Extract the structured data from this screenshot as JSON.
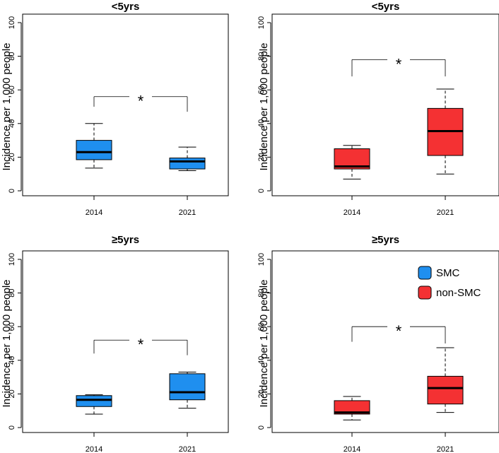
{
  "colors": {
    "SMC": "#1f8fef",
    "non-SMC": "#f43133"
  },
  "legend": {
    "items": [
      {
        "label": "SMC",
        "group": "SMC"
      },
      {
        "label": "non-SMC",
        "group": "non-SMC"
      }
    ],
    "placement": "top-right of bottom-right panel"
  },
  "chart_data": [
    {
      "type": "boxplot",
      "title": "<5yrs",
      "ylabel": "Incidence per 1,000 people",
      "ylim": [
        0,
        100
      ],
      "yticks": [
        0,
        20,
        40,
        60,
        80,
        100
      ],
      "group": "SMC",
      "categories": [
        "2014",
        "2021"
      ],
      "boxes": [
        {
          "x": "2014",
          "min": 13.5,
          "q1": 18.5,
          "median": 23.0,
          "q3": 30.0,
          "max": 40.0
        },
        {
          "x": "2021",
          "min": 12.0,
          "q1": 13.0,
          "median": 17.5,
          "q3": 19.5,
          "max": 26.0
        }
      ],
      "significance": {
        "label": "*",
        "bracket_y": 56,
        "left_end": 50,
        "right_end": 47
      }
    },
    {
      "type": "boxplot",
      "title": "<5yrs",
      "ylabel": "Incidence per 1,000 people",
      "ylim": [
        0,
        100
      ],
      "yticks": [
        0,
        20,
        40,
        60,
        80,
        100
      ],
      "group": "non-SMC",
      "categories": [
        "2014",
        "2021"
      ],
      "boxes": [
        {
          "x": "2014",
          "min": 7.0,
          "q1": 13.0,
          "median": 14.5,
          "q3": 25.0,
          "max": 27.0
        },
        {
          "x": "2021",
          "min": 10.0,
          "q1": 21.0,
          "median": 35.5,
          "q3": 49.0,
          "max": 60.5
        }
      ],
      "significance": {
        "label": "*",
        "bracket_y": 78,
        "left_end": 68,
        "right_end": 68
      }
    },
    {
      "type": "boxplot",
      "title": "≥5yrs",
      "ylabel": "Incidence per 1,000 people",
      "ylim": [
        0,
        100
      ],
      "yticks": [
        0,
        20,
        40,
        60,
        80,
        100
      ],
      "group": "SMC",
      "categories": [
        "2014",
        "2021"
      ],
      "boxes": [
        {
          "x": "2014",
          "min": 8.0,
          "q1": 12.5,
          "median": 16.5,
          "q3": 19.0,
          "max": 19.5
        },
        {
          "x": "2021",
          "min": 11.5,
          "q1": 16.5,
          "median": 21.0,
          "q3": 32.0,
          "max": 33.0
        }
      ],
      "significance": {
        "label": "*",
        "bracket_y": 52,
        "left_end": 44,
        "right_end": 43
      }
    },
    {
      "type": "boxplot",
      "title": "≥5yrs",
      "ylabel": "Incidence per 1,000 people",
      "ylim": [
        0,
        100
      ],
      "yticks": [
        0,
        20,
        40,
        60,
        80,
        100
      ],
      "group": "non-SMC",
      "categories": [
        "2014",
        "2021"
      ],
      "boxes": [
        {
          "x": "2014",
          "min": 4.5,
          "q1": 8.0,
          "median": 9.0,
          "q3": 16.0,
          "max": 18.5
        },
        {
          "x": "2021",
          "min": 9.0,
          "q1": 14.0,
          "median": 23.5,
          "q3": 30.5,
          "max": 47.5
        }
      ],
      "significance": {
        "label": "*",
        "bracket_y": 60,
        "left_end": 51,
        "right_end": 50
      }
    }
  ]
}
